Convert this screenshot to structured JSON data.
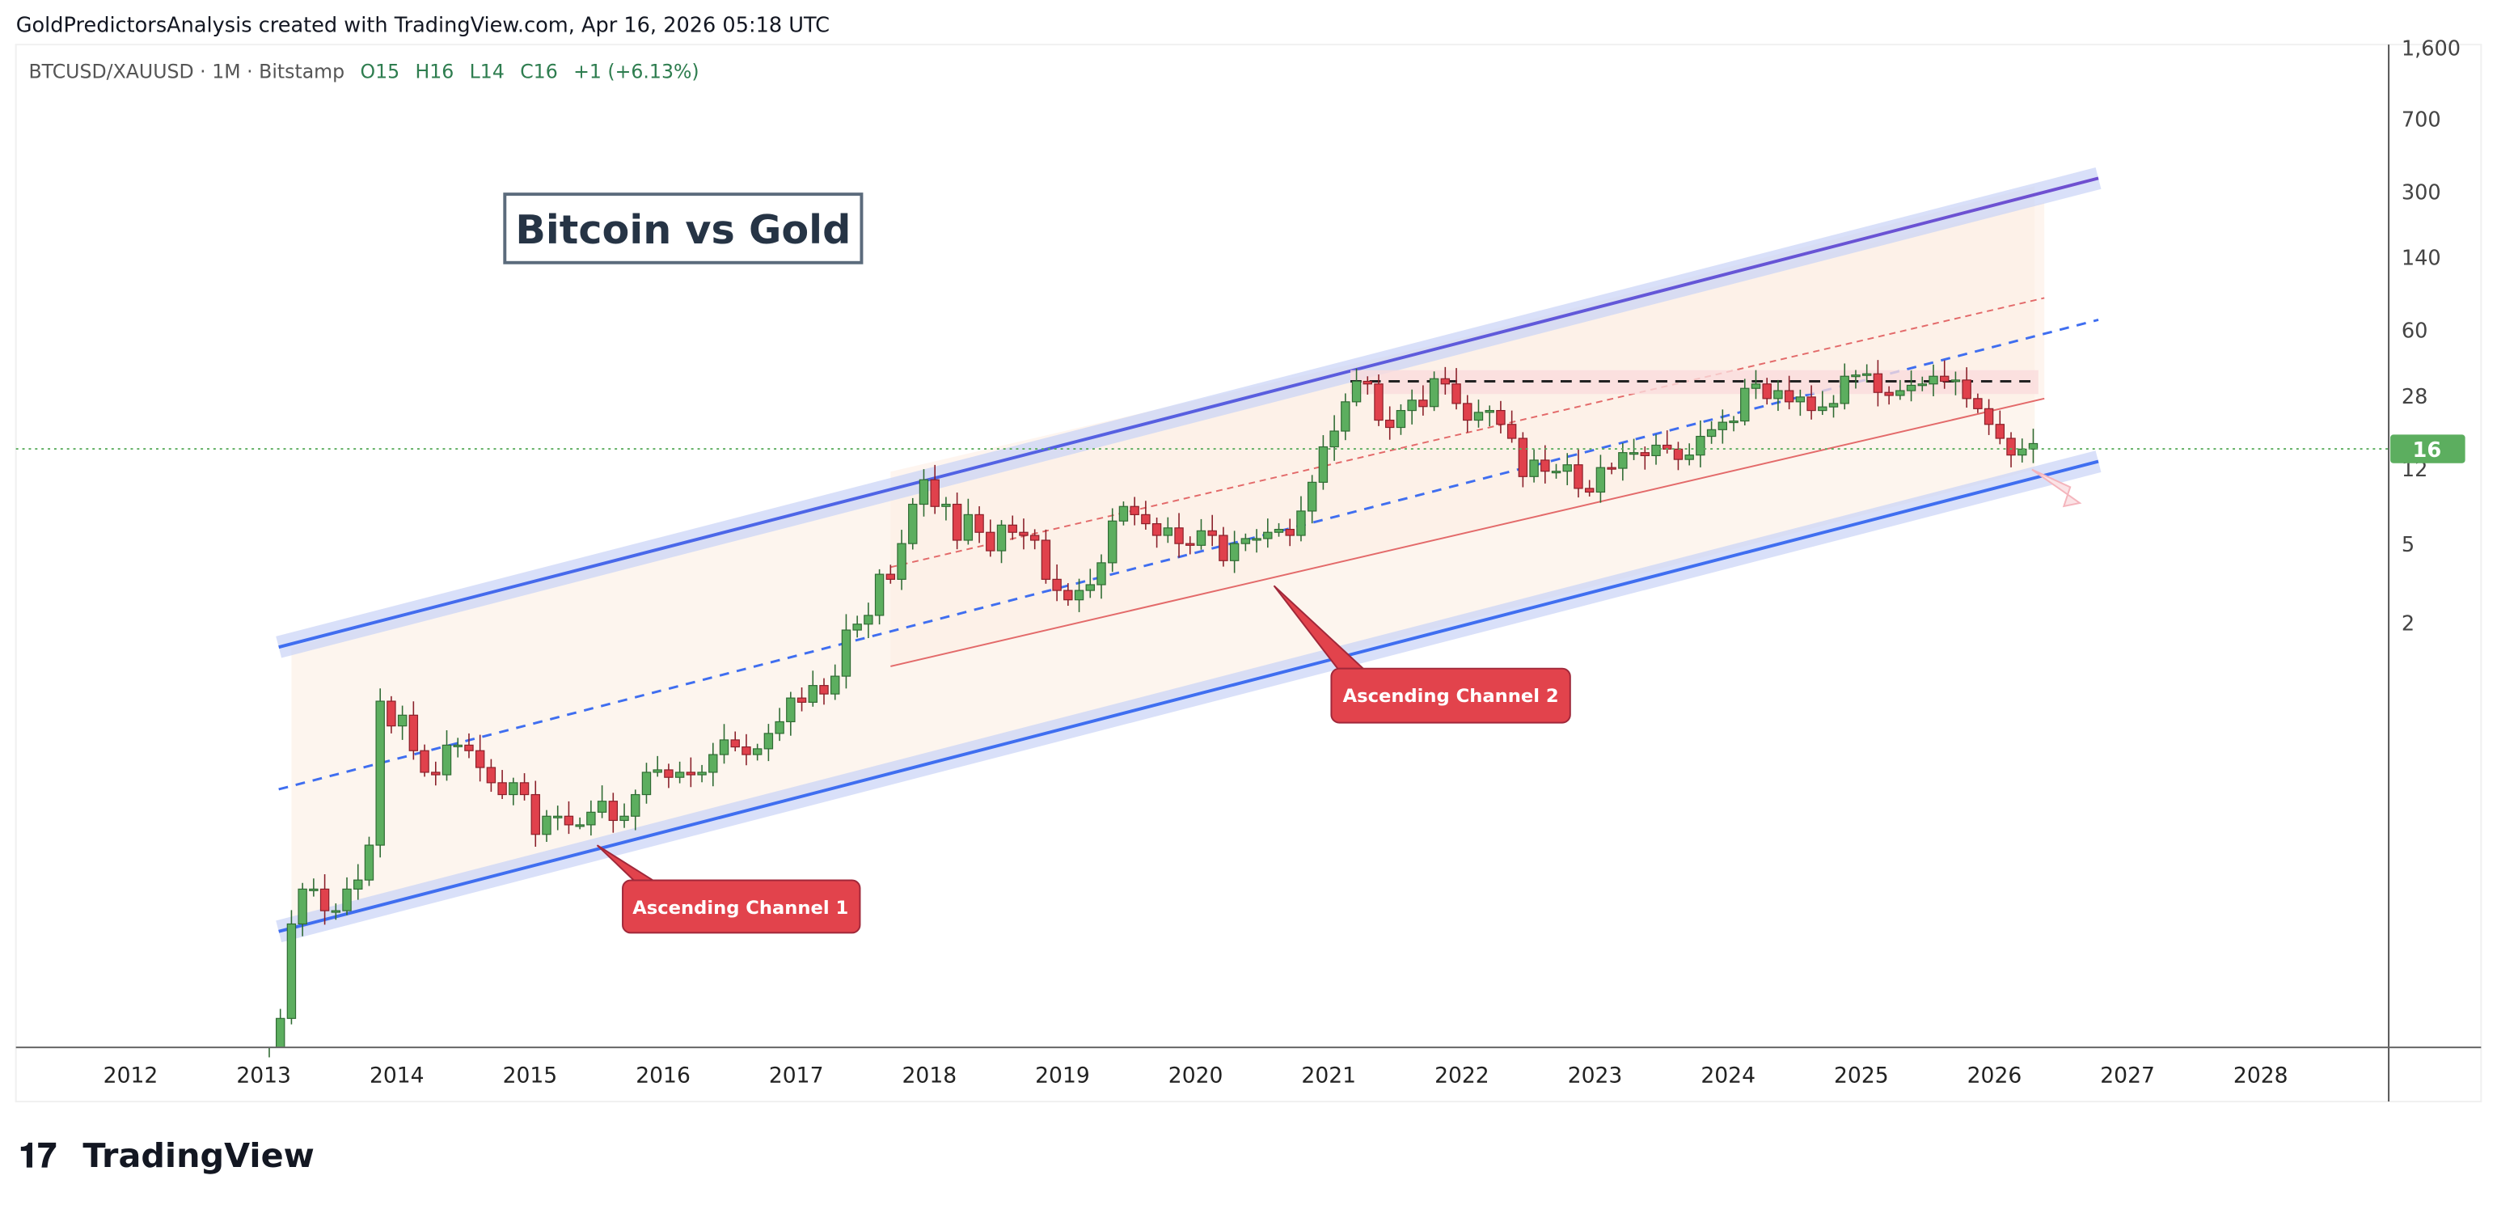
{
  "header": {
    "attribution": "GoldPredictorsAnalysis created with TradingView.com, Apr 16, 2026 05:18 UTC",
    "symbol_info": "BTCUSD/XAUUSD · 1M · Bitstamp",
    "ohlc": {
      "open": "O15",
      "high": "H16",
      "low": "L14",
      "close": "C16",
      "change": "+1 (+6.13%)"
    }
  },
  "branding": {
    "logo_text": "TradingView"
  },
  "annotations": {
    "title": "Bitcoin vs Gold",
    "callout_1": "Ascending Channel 1",
    "callout_2": "Ascending Channel 2"
  },
  "colors": {
    "up": "#5cae5f",
    "down": "#e0414c",
    "channel_blue": "#3f6ef0",
    "channel_red": "#e36a6a",
    "callout": "#e2434c"
  },
  "chart_data": {
    "type": "candlestick",
    "title": "Bitcoin vs Gold",
    "scale": "log",
    "interval": "1M",
    "y_ticks": [
      "1,600",
      "700",
      "300",
      "140",
      "60",
      "28",
      "12",
      "5",
      "2"
    ],
    "y_tick_values": [
      1600,
      700,
      300,
      140,
      60,
      28,
      12,
      5,
      2
    ],
    "x_ticks": [
      "2012",
      "2013",
      "2014",
      "2015",
      "2016",
      "2017",
      "2018",
      "2019",
      "2020",
      "2021",
      "2022",
      "2023",
      "2024",
      "2025",
      "2026",
      "2027",
      "2028"
    ],
    "last_price": "16",
    "start": "2013-01",
    "monthly_close": [
      0.012,
      0.02,
      0.06,
      0.09,
      0.09,
      0.07,
      0.07,
      0.09,
      0.1,
      0.15,
      0.8,
      0.6,
      0.68,
      0.45,
      0.35,
      0.34,
      0.48,
      0.48,
      0.45,
      0.37,
      0.31,
      0.27,
      0.31,
      0.27,
      0.17,
      0.21,
      0.21,
      0.19,
      0.19,
      0.22,
      0.25,
      0.2,
      0.21,
      0.27,
      0.35,
      0.36,
      0.33,
      0.35,
      0.34,
      0.35,
      0.43,
      0.51,
      0.47,
      0.43,
      0.46,
      0.55,
      0.63,
      0.83,
      0.79,
      0.96,
      0.87,
      1.07,
      1.83,
      1.96,
      2.17,
      3.5,
      3.3,
      5.0,
      7.9,
      10.5,
      7.7,
      7.9,
      5.2,
      7.0,
      5.7,
      4.6,
      6.2,
      5.7,
      5.5,
      5.2,
      3.3,
      2.9,
      2.6,
      2.9,
      3.1,
      4.0,
      6.5,
      7.7,
      7.0,
      6.3,
      5.5,
      6.0,
      5.0,
      4.9,
      5.8,
      5.5,
      4.1,
      5.0,
      5.3,
      5.3,
      5.7,
      5.9,
      5.5,
      7.3,
      10.2,
      15.4,
      18.5,
      26,
      33,
      32,
      21,
      19.3,
      23.5,
      26.5,
      24.6,
      34,
      32,
      25.5,
      21,
      23,
      23.5,
      20,
      17,
      10.9,
      13.2,
      11.6,
      11.6,
      12.5,
      9.5,
      9.1,
      12.1,
      12.0,
      14.4,
      14.4,
      13.9,
      15.7,
      15.0,
      13.3,
      14.0,
      17.4,
      18.8,
      20.5,
      20.8,
      30.4,
      32,
      27,
      29.6,
      26,
      27.5,
      23.5,
      24.5,
      25.5,
      35,
      35.5,
      36,
      29,
      28,
      29.6,
      31.5,
      32,
      35,
      33,
      33.5,
      27,
      24,
      20,
      17,
      14,
      15,
      16
    ],
    "resistance_level": 33,
    "channels": [
      {
        "name": "Ascending Channel 1",
        "from": "2013-03",
        "to": "2026-07",
        "lower_start": 0.055,
        "lower_end": 13,
        "upper_start": 1.5,
        "upper_end": 350
      },
      {
        "name": "Ascending Channel 2",
        "from": "2017-09",
        "to": "2026-05",
        "lower_start": 1.2,
        "lower_end": 27,
        "upper_start": 3.8,
        "upper_end": 87
      }
    ]
  }
}
